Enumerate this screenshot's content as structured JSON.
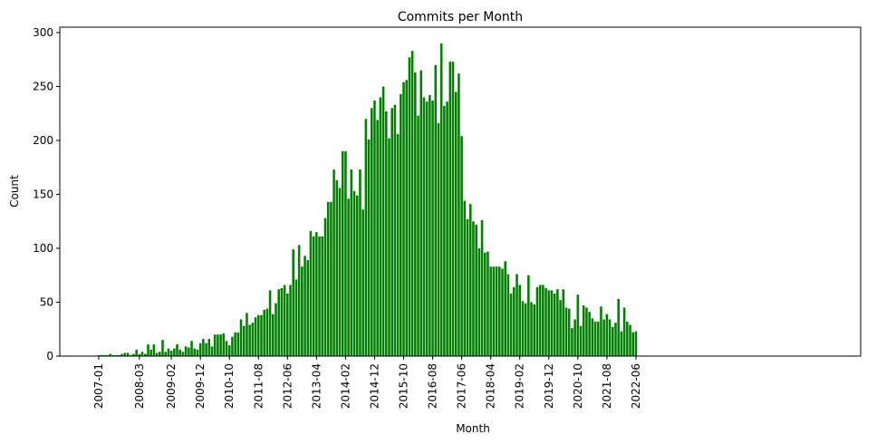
{
  "chart_data": {
    "type": "bar",
    "title": "Commits per Month",
    "xlabel": "Month",
    "ylabel": "Count",
    "ylim": [
      0,
      305
    ],
    "yticks": [
      0,
      50,
      100,
      150,
      200,
      250,
      300
    ],
    "grid": false,
    "bar_color": "#008000",
    "start_month": "2007-01",
    "xticks": [
      "2007-01",
      "2008-03",
      "2009-02",
      "2009-12",
      "2010-10",
      "2011-08",
      "2012-06",
      "2013-04",
      "2014-02",
      "2014-12",
      "2015-10",
      "2016-08",
      "2017-06",
      "2018-04",
      "2019-02",
      "2019-12",
      "2020-10",
      "2021-08",
      "2022-06"
    ],
    "values": [
      1,
      1,
      1,
      1,
      2,
      1,
      1,
      1,
      2,
      3,
      3,
      1,
      2,
      6,
      2,
      4,
      2,
      11,
      6,
      11,
      3,
      4,
      15,
      4,
      7,
      5,
      7,
      11,
      6,
      4,
      9,
      8,
      14,
      7,
      6,
      12,
      16,
      12,
      16,
      9,
      20,
      20,
      20,
      21,
      14,
      10,
      18,
      22,
      22,
      34,
      28,
      40,
      29,
      31,
      36,
      38,
      38,
      43,
      44,
      61,
      39,
      49,
      62,
      63,
      66,
      58,
      66,
      99,
      71,
      103,
      83,
      93,
      89,
      116,
      111,
      115,
      111,
      111,
      128,
      143,
      143,
      173,
      163,
      156,
      190,
      190,
      146,
      173,
      153,
      149,
      173,
      136,
      220,
      201,
      230,
      237,
      219,
      240,
      250,
      227,
      202,
      230,
      233,
      206,
      243,
      254,
      256,
      277,
      283,
      263,
      223,
      265,
      240,
      236,
      242,
      237,
      270,
      216,
      290,
      232,
      236,
      273,
      273,
      245,
      262,
      204,
      144,
      127,
      141,
      125,
      122,
      100,
      126,
      96,
      97,
      83,
      83,
      83,
      83,
      81,
      88,
      76,
      58,
      64,
      76,
      66,
      51,
      49,
      75,
      50,
      48,
      64,
      66,
      66,
      63,
      61,
      61,
      58,
      62,
      52,
      62,
      45,
      44,
      26,
      34,
      57,
      28,
      47,
      45,
      41,
      35,
      32,
      32,
      46,
      34,
      39,
      34,
      27,
      31,
      53,
      23,
      45,
      32,
      29,
      22,
      23
    ]
  }
}
